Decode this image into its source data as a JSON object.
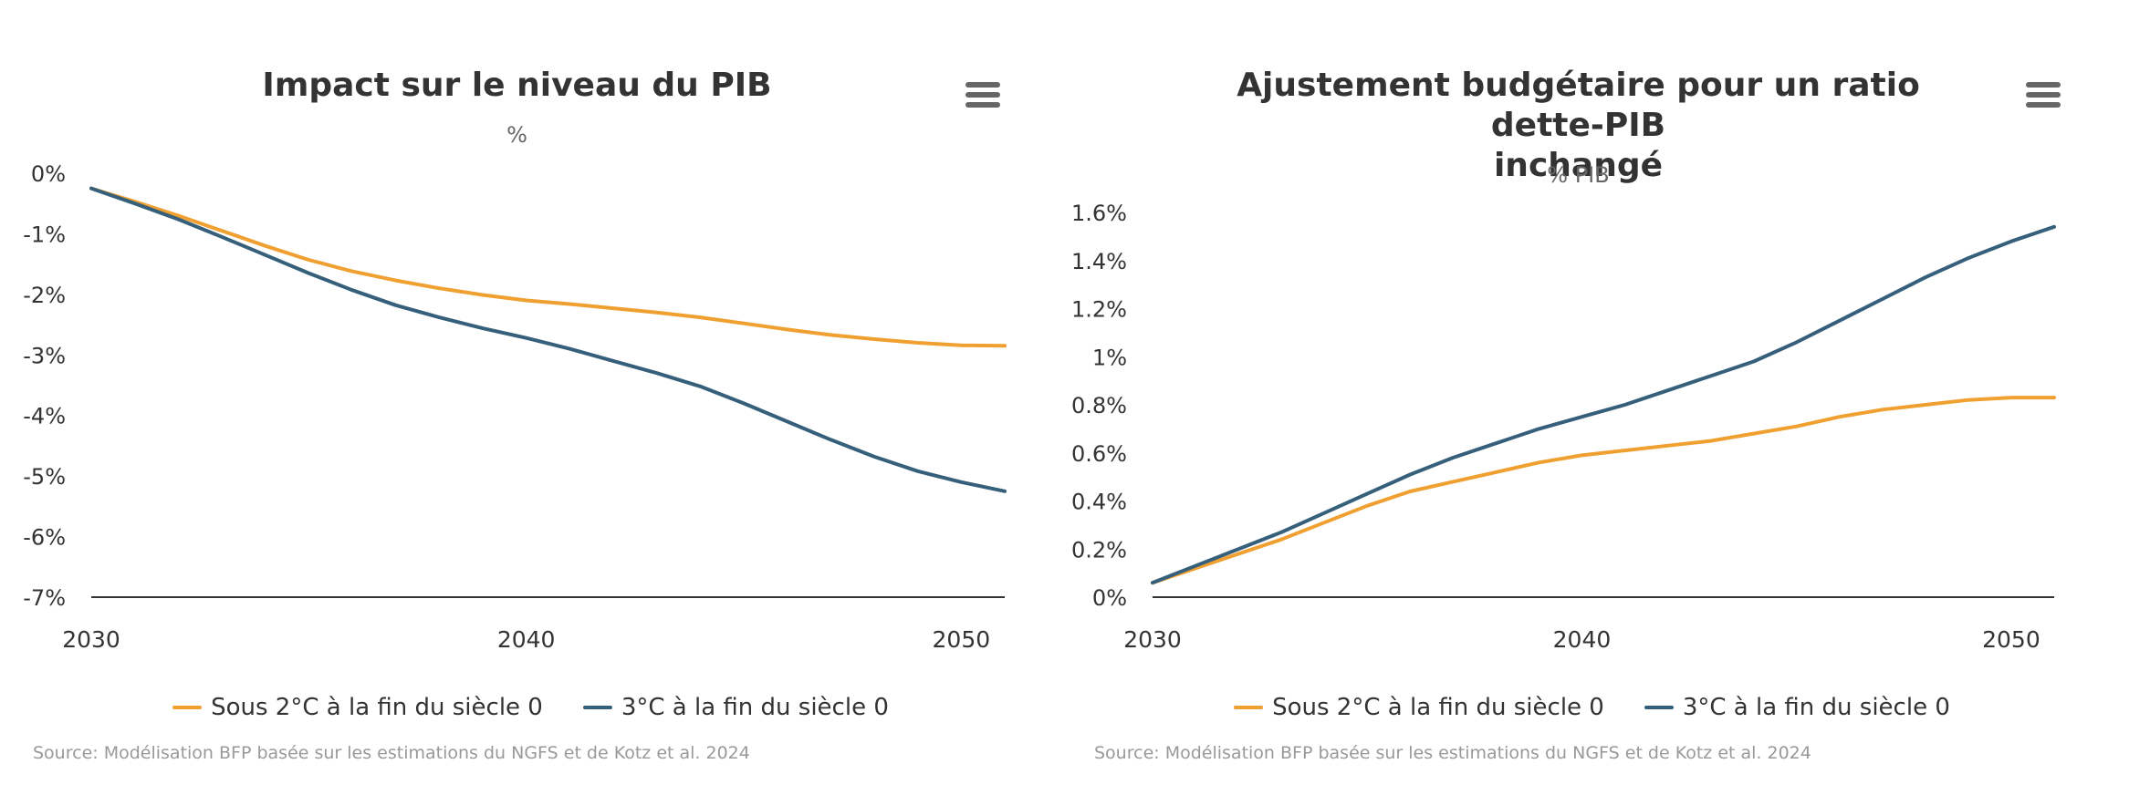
{
  "colors": {
    "orange": "#f0a030",
    "blue": "#355f7a",
    "axis": "#333333"
  },
  "charts": [
    {
      "title_lines": [
        "Impact sur le niveau du PIB"
      ],
      "subtitle": "%",
      "menu_icon": "hamburger-menu-icon",
      "source": "Source: Modélisation BFP basée sur les estimations du NGFS et de Kotz et al. 2024",
      "legend": [
        "Sous 2°C à la fin du siècle 0",
        "3°C à la fin du siècle 0"
      ]
    },
    {
      "title_lines": [
        "Ajustement budgétaire pour un ratio dette-PIB",
        "inchangé"
      ],
      "subtitle": "% PIB",
      "menu_icon": "hamburger-menu-icon",
      "source": "Source: Modélisation BFP basée sur les estimations du NGFS et de Kotz et al. 2024",
      "legend": [
        "Sous 2°C à la fin du siècle 0",
        "3°C à la fin du siècle 0"
      ]
    }
  ],
  "chart_data": [
    {
      "type": "line",
      "title": "Impact sur le niveau du PIB",
      "subtitle": "%",
      "xlim": [
        2030,
        2051
      ],
      "ylim": [
        -7,
        0
      ],
      "x_ticks": [
        2030,
        2040,
        2050
      ],
      "y_ticks": [
        0,
        -1,
        -2,
        -3,
        -4,
        -5,
        -6,
        -7
      ],
      "y_tick_labels": [
        "0%",
        "-1%",
        "-2%",
        "-3%",
        "-4%",
        "-5%",
        "-6%",
        "-7%"
      ],
      "grid": false,
      "legend_position": "bottom",
      "x": [
        2030,
        2031,
        2032,
        2033,
        2034,
        2035,
        2036,
        2037,
        2038,
        2039,
        2040,
        2041,
        2042,
        2043,
        2044,
        2045,
        2046,
        2047,
        2048,
        2049,
        2050,
        2051
      ],
      "series": [
        {
          "name": "Sous 2°C à la fin du siècle 0",
          "color": "#f0a030",
          "values": [
            -0.25,
            -0.47,
            -0.7,
            -0.95,
            -1.2,
            -1.43,
            -1.62,
            -1.77,
            -1.9,
            -2.01,
            -2.1,
            -2.16,
            -2.23,
            -2.3,
            -2.38,
            -2.48,
            -2.58,
            -2.67,
            -2.74,
            -2.8,
            -2.84,
            -2.85
          ]
        },
        {
          "name": "3°C à la fin du siècle 0",
          "color": "#355f7a",
          "values": [
            -0.25,
            -0.5,
            -0.76,
            -1.05,
            -1.35,
            -1.65,
            -1.93,
            -2.18,
            -2.38,
            -2.56,
            -2.72,
            -2.9,
            -3.1,
            -3.3,
            -3.52,
            -3.8,
            -4.1,
            -4.4,
            -4.68,
            -4.92,
            -5.1,
            -5.25
          ]
        }
      ]
    },
    {
      "type": "line",
      "title": "Ajustement budgétaire pour un ratio dette-PIB inchangé",
      "subtitle": "% PIB",
      "xlim": [
        2030,
        2051
      ],
      "ylim": [
        0,
        1.6
      ],
      "x_ticks": [
        2030,
        2040,
        2050
      ],
      "y_ticks": [
        0,
        0.2,
        0.4,
        0.6,
        0.8,
        1.0,
        1.2,
        1.4,
        1.6
      ],
      "y_tick_labels": [
        "0%",
        "0.2%",
        "0.4%",
        "0.6%",
        "0.8%",
        "1%",
        "1.2%",
        "1.4%",
        "1.6%"
      ],
      "grid": false,
      "legend_position": "bottom",
      "x": [
        2030,
        2031,
        2032,
        2033,
        2034,
        2035,
        2036,
        2037,
        2038,
        2039,
        2040,
        2041,
        2042,
        2043,
        2044,
        2045,
        2046,
        2047,
        2048,
        2049,
        2050,
        2051
      ],
      "series": [
        {
          "name": "Sous 2°C à la fin du siècle 0",
          "color": "#f0a030",
          "values": [
            0.06,
            0.12,
            0.18,
            0.24,
            0.31,
            0.38,
            0.44,
            0.48,
            0.52,
            0.56,
            0.59,
            0.61,
            0.63,
            0.65,
            0.68,
            0.71,
            0.75,
            0.78,
            0.8,
            0.82,
            0.83,
            0.83
          ]
        },
        {
          "name": "3°C à la fin du siècle 0",
          "color": "#355f7a",
          "values": [
            0.06,
            0.13,
            0.2,
            0.27,
            0.35,
            0.43,
            0.51,
            0.58,
            0.64,
            0.7,
            0.75,
            0.8,
            0.86,
            0.92,
            0.98,
            1.06,
            1.15,
            1.24,
            1.33,
            1.41,
            1.48,
            1.54
          ]
        }
      ]
    }
  ]
}
